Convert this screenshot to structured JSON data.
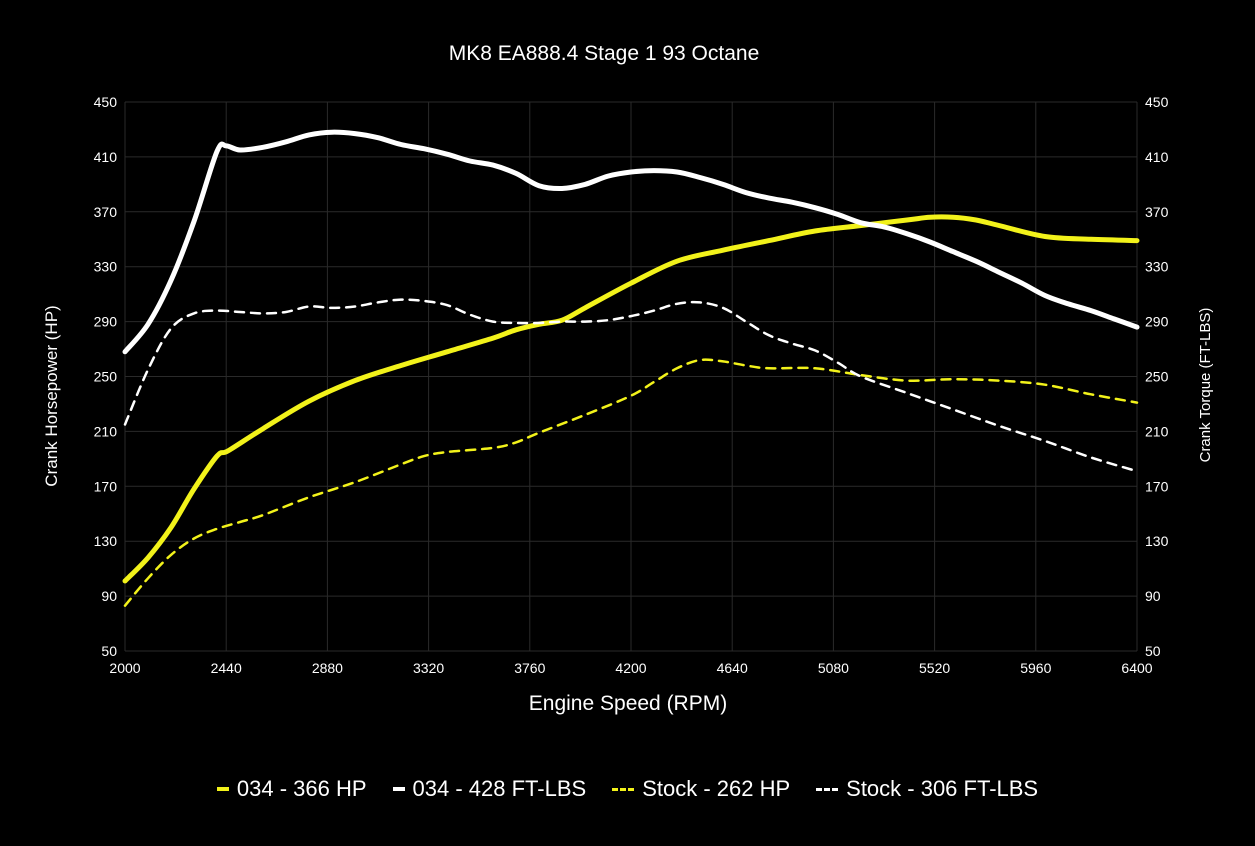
{
  "chart_data": {
    "type": "line",
    "title": "MK8 EA888.4 Stage 1 93 Octane",
    "xlabel": "Engine Speed (RPM)",
    "ylabel_left": "Crank Horsepower (HP)",
    "ylabel_right": "Crank Torque (FT-LBS)",
    "xlim": [
      2000,
      6400
    ],
    "ylim": [
      50,
      450
    ],
    "xticks": [
      "2000",
      "2440",
      "2880",
      "3320",
      "3760",
      "4200",
      "4640",
      "5080",
      "5520",
      "5960",
      "6400"
    ],
    "yticks": [
      "50",
      "90",
      "130",
      "170",
      "210",
      "250",
      "290",
      "330",
      "370",
      "410",
      "450"
    ],
    "grid": true,
    "legend_position": "bottom",
    "series": [
      {
        "name": "034 - 366 HP",
        "color": "#f2f21a",
        "style": "solid",
        "x": [
          2000,
          2100,
          2200,
          2300,
          2400,
          2450,
          2600,
          2800,
          3000,
          3200,
          3400,
          3600,
          3700,
          3800,
          3900,
          4000,
          4200,
          4400,
          4600,
          4800,
          5000,
          5200,
          5400,
          5500,
          5600,
          5700,
          5800,
          6000,
          6200,
          6400
        ],
        "y": [
          101,
          118,
          140,
          168,
          192,
          196,
          212,
          232,
          247,
          258,
          268,
          278,
          284,
          288,
          291,
          300,
          318,
          334,
          342,
          349,
          356,
          360,
          364,
          366,
          366,
          364,
          360,
          352,
          350,
          349
        ]
      },
      {
        "name": "034 - 428 FT-LBS",
        "color": "#ffffff",
        "style": "solid",
        "x": [
          2000,
          2100,
          2200,
          2300,
          2400,
          2440,
          2500,
          2600,
          2700,
          2800,
          2900,
          3000,
          3100,
          3200,
          3300,
          3400,
          3500,
          3600,
          3700,
          3800,
          3900,
          4000,
          4100,
          4200,
          4300,
          4400,
          4500,
          4600,
          4700,
          4800,
          4900,
          5000,
          5100,
          5200,
          5300,
          5400,
          5500,
          5600,
          5700,
          5800,
          5900,
          6000,
          6100,
          6200,
          6300,
          6400
        ],
        "y": [
          268,
          288,
          320,
          363,
          414,
          418,
          415,
          417,
          421,
          426,
          428,
          427,
          424,
          419,
          416,
          412,
          407,
          404,
          398,
          389,
          387,
          390,
          396,
          399,
          400,
          399,
          395,
          390,
          384,
          380,
          377,
          373,
          368,
          362,
          359,
          354,
          348,
          341,
          334,
          326,
          318,
          309,
          303,
          298,
          292,
          286
        ]
      },
      {
        "name": "Stock - 262 HP",
        "color": "#f2f21a",
        "style": "dashed",
        "x": [
          2000,
          2100,
          2200,
          2300,
          2400,
          2500,
          2600,
          2800,
          3000,
          3200,
          3300,
          3400,
          3600,
          3700,
          3800,
          4000,
          4200,
          4300,
          4400,
          4500,
          4600,
          4700,
          4800,
          5000,
          5200,
          5400,
          5600,
          5800,
          6000,
          6200,
          6400
        ],
        "y": [
          83,
          103,
          120,
          132,
          139,
          144,
          149,
          162,
          173,
          186,
          192,
          195,
          198,
          202,
          209,
          222,
          236,
          246,
          256,
          262,
          261,
          258,
          256,
          256,
          251,
          247,
          248,
          247,
          244,
          237,
          231
        ]
      },
      {
        "name": "Stock - 306 FT-LBS",
        "color": "#ffffff",
        "style": "dashed",
        "x": [
          2000,
          2100,
          2200,
          2300,
          2400,
          2500,
          2600,
          2700,
          2800,
          2900,
          3000,
          3100,
          3200,
          3300,
          3400,
          3500,
          3600,
          3700,
          3800,
          3900,
          4000,
          4100,
          4200,
          4300,
          4400,
          4500,
          4600,
          4700,
          4800,
          4900,
          5000,
          5100,
          5200,
          5400,
          5600,
          5800,
          6000,
          6200,
          6400
        ],
        "y": [
          215,
          255,
          285,
          296,
          298,
          297,
          296,
          297,
          301,
          300,
          301,
          304,
          306,
          305,
          302,
          295,
          290,
          289,
          289,
          290,
          290,
          291,
          294,
          298,
          303,
          304,
          300,
          290,
          280,
          274,
          269,
          260,
          250,
          238,
          226,
          214,
          203,
          191,
          181
        ]
      }
    ]
  }
}
